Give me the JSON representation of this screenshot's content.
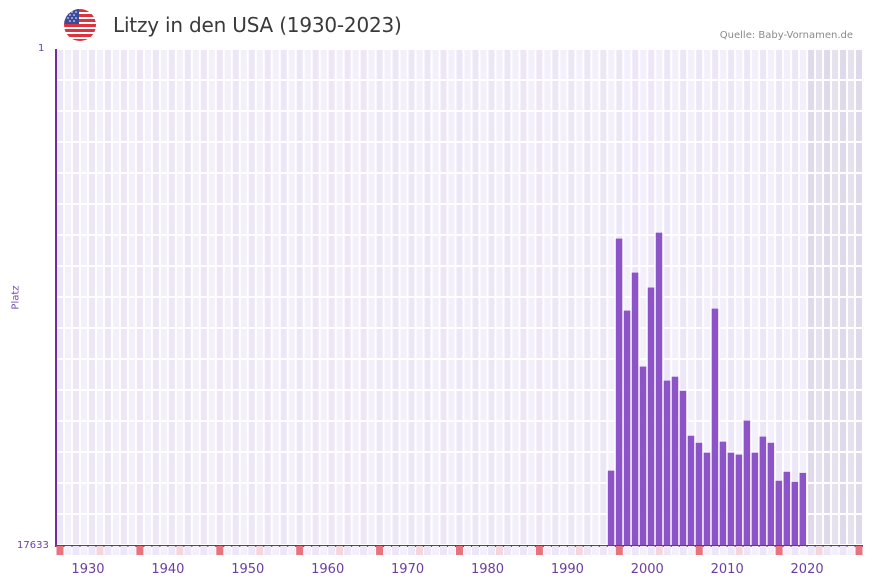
{
  "header": {
    "title": "Litzy in den USA (1930-2023)",
    "flag_icon": "us-flag-icon",
    "source": "Quelle: Baby-Vornamen.de"
  },
  "axis": {
    "y_top_label": "1",
    "y_bottom_label": "17633",
    "y_title": "Platz",
    "x_ticks": [
      "1930",
      "1940",
      "1950",
      "1960",
      "1970",
      "1980",
      "1990",
      "2000",
      "2010",
      "2020"
    ]
  },
  "colors": {
    "bar": "#8c54c8",
    "axis": "#6b2fa0",
    "grid_light": "#f3effb",
    "grid_dark": "#ece6f7",
    "future_shade": "#e2dcec",
    "marker_decade": "#e8737c",
    "marker_half": "#f5d5dc"
  },
  "chart_data": {
    "type": "bar",
    "title": "Litzy in den USA (1930-2023)",
    "xlabel": "",
    "ylabel": "Platz",
    "ylim": [
      17633,
      1
    ],
    "y_inverted": true,
    "x_range": [
      1928,
      2028
    ],
    "shaded_from": 2022,
    "categories": [
      1997,
      1998,
      1999,
      2000,
      2001,
      2002,
      2003,
      2004,
      2005,
      2006,
      2007,
      2008,
      2009,
      2010,
      2011,
      2012,
      2013,
      2014,
      2015,
      2016,
      2017,
      2018,
      2019,
      2020,
      2021
    ],
    "values": [
      14990,
      6740,
      9300,
      7950,
      11290,
      8480,
      6530,
      11790,
      11650,
      12150,
      13750,
      14000,
      14350,
      9230,
      13960,
      14350,
      14420,
      13210,
      14350,
      13780,
      14000,
      15350,
      15030,
      15390,
      15070
    ],
    "grid": true,
    "legend": null
  }
}
